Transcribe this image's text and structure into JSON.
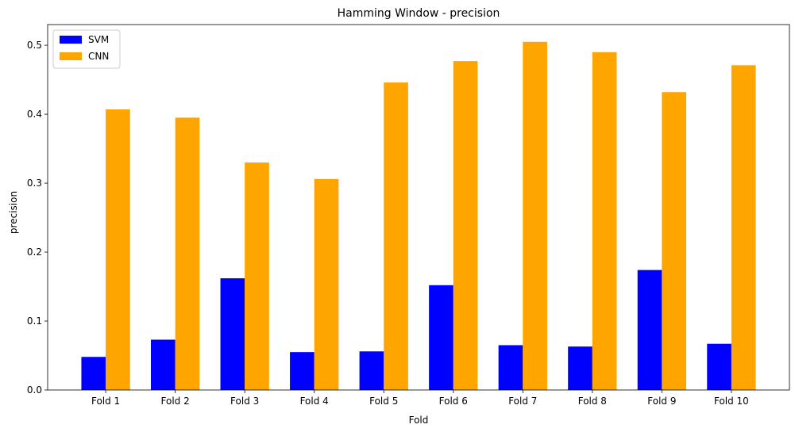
{
  "chart_data": {
    "type": "bar",
    "title": "Hamming Window - precision",
    "xlabel": "Fold",
    "ylabel": "precision",
    "categories": [
      "Fold 1",
      "Fold 2",
      "Fold 3",
      "Fold 4",
      "Fold 5",
      "Fold 6",
      "Fold 7",
      "Fold 8",
      "Fold 9",
      "Fold 10"
    ],
    "series": [
      {
        "name": "SVM",
        "color": "#0000ff",
        "values": [
          0.048,
          0.073,
          0.162,
          0.055,
          0.056,
          0.152,
          0.065,
          0.063,
          0.174,
          0.067
        ]
      },
      {
        "name": "CNN",
        "color": "#ffa500",
        "values": [
          0.407,
          0.395,
          0.33,
          0.306,
          0.446,
          0.477,
          0.505,
          0.49,
          0.432,
          0.471
        ]
      }
    ],
    "ylim": [
      0,
      0.53
    ],
    "yticks": [
      "0.0",
      "0.1",
      "0.2",
      "0.3",
      "0.4",
      "0.5"
    ],
    "grid": false,
    "legend_position": "top-left"
  }
}
